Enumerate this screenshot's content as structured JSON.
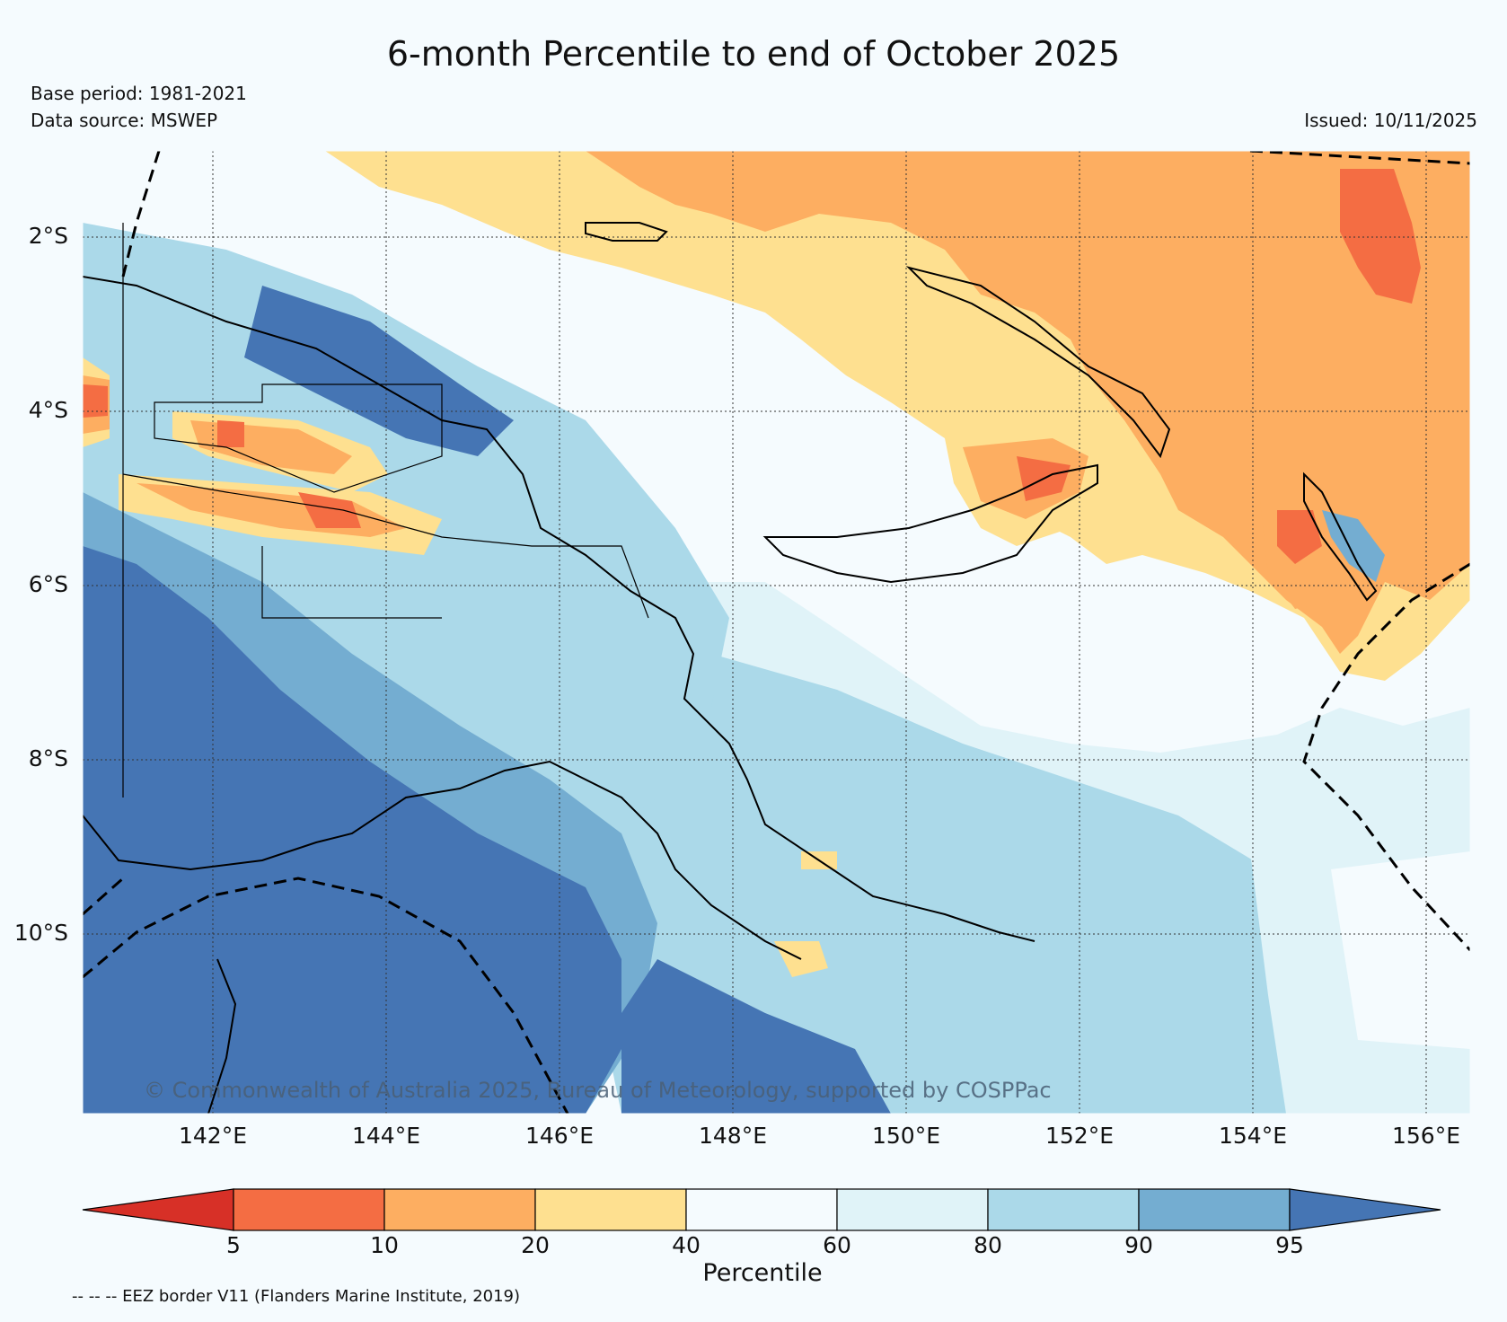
{
  "title": "6-month Percentile to end of October 2025",
  "base_period": "Base period: 1981-2021",
  "data_source": "Data source: MSWEP",
  "issued": "Issued: 10/11/2025",
  "copyright": "© Commonwealth of Australia 2025, Bureau of Meteorology, supported by COSPPac",
  "map": {
    "lon_labels": [
      "142°E",
      "144°E",
      "146°E",
      "148°E",
      "150°E",
      "152°E",
      "154°E",
      "156°E"
    ],
    "lat_labels": [
      "2°S",
      "4°S",
      "6°S",
      "8°S",
      "10°S"
    ]
  },
  "colorbar": {
    "title": "Percentile",
    "ticks": [
      "5",
      "10",
      "20",
      "40",
      "60",
      "80",
      "90",
      "95"
    ],
    "colors": {
      "lt5": "#d73027",
      "p5_10": "#f46d43",
      "p10_20": "#fdae61",
      "p20_40": "#fee090",
      "p40_60": "#f5fbfe",
      "p60_80": "#e0f3f8",
      "p80_90": "#abd9e9",
      "p90_95": "#74add1",
      "gt95": "#4575b4"
    }
  },
  "legend_note": "-- -- -- EEZ border V11 (Flanders Marine Institute, 2019)"
}
